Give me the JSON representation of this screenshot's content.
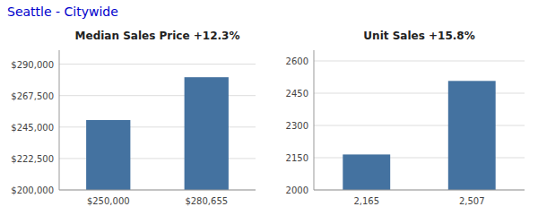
{
  "title": "Seattle - Citywide",
  "color": "#0000CC",
  "chart_data": [
    {
      "type": "bar",
      "title": "Median Sales Price +12.3%",
      "categories": [
        "$250,000",
        "$280,655"
      ],
      "values": [
        250000,
        280655
      ],
      "color": "#4472A0",
      "ylim": [
        200000,
        300000
      ],
      "yticks": [
        {
          "value": 200000,
          "label": "$200,000"
        },
        {
          "value": 222500,
          "label": "$222,500"
        },
        {
          "value": 245000,
          "label": "$245,000"
        },
        {
          "value": 267500,
          "label": "$267,500"
        },
        {
          "value": 290000,
          "label": "$290,000"
        }
      ],
      "grid": true
    },
    {
      "type": "bar",
      "title": "Unit Sales +15.8%",
      "categories": [
        "2,165",
        "2,507"
      ],
      "values": [
        2165,
        2507
      ],
      "color": "#4472A0",
      "ylim": [
        2000,
        2650
      ],
      "yticks": [
        2000,
        2150,
        2300,
        2450,
        2600
      ],
      "grid": true
    }
  ]
}
